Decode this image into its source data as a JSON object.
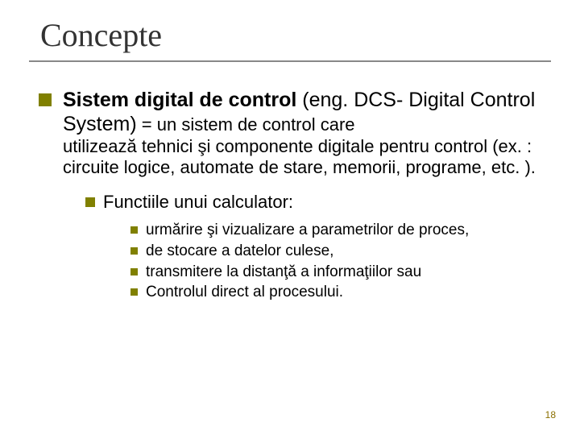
{
  "colors": {
    "bullet": "#808000",
    "title": "#333333",
    "underline": "#888888",
    "pagenum": "#8b6f00",
    "text": "#000000",
    "background": "#ffffff"
  },
  "title": "Concepte",
  "main": {
    "bold": "Sistem digital de control",
    "rest_line1": " (eng. DCS- Digital Control System)",
    "equals": " = un sistem de control care",
    "cont": "utilizează tehnici şi componente digitale pentru control (ex. : circuite logice, automate de stare, memorii, programe, etc. )."
  },
  "sub": {
    "label": "Functiile unui calculator:"
  },
  "items": [
    "urmărire şi vizualizare a parametrilor de proces,",
    "de stocare a datelor culese,",
    "transmitere la distanţă a informaţiilor sau",
    "Controlul direct al procesului."
  ],
  "page_number": "18"
}
